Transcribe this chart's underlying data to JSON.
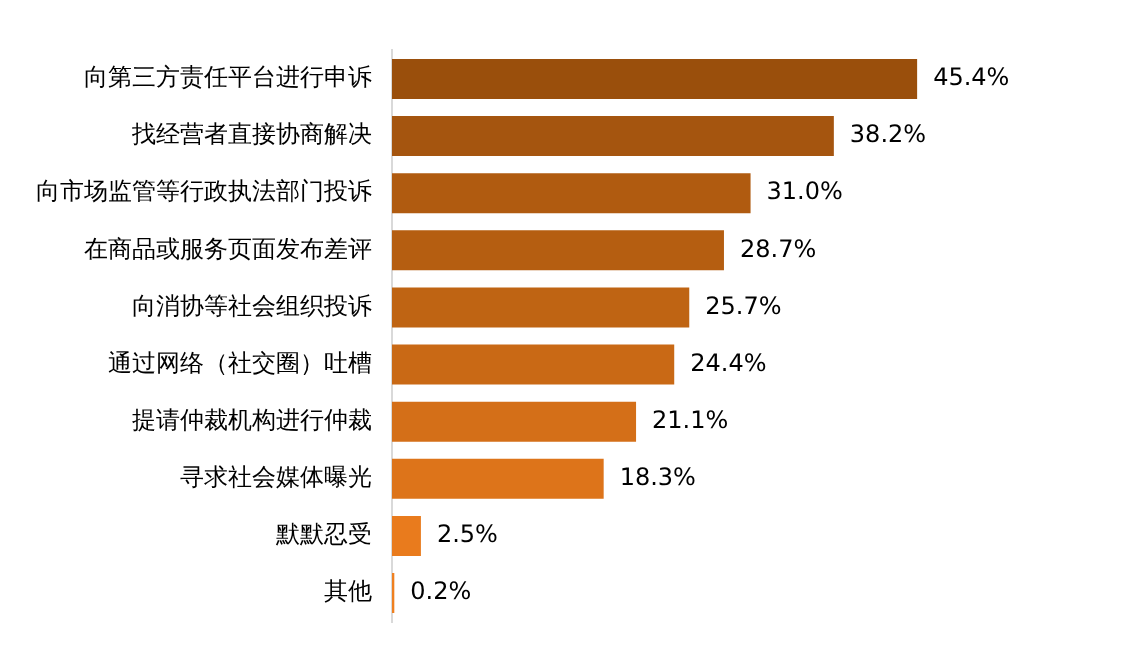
{
  "chart_data": {
    "type": "bar",
    "orientation": "horizontal",
    "categories": [
      "向第三方责任平台进行申诉",
      "找经营者直接协商解决",
      "向市场监管等行政执法部门投诉",
      "在商品或服务页面发布差评",
      "向消协等社会组织投诉",
      "通过网络（社交圈）吐槽",
      "提请仲裁机构进行仲裁",
      "寻求社会媒体曝光",
      "默默忍受",
      "其他"
    ],
    "values": [
      45.4,
      38.2,
      31.0,
      28.7,
      25.7,
      24.4,
      21.1,
      18.3,
      2.5,
      0.2
    ],
    "value_labels": [
      "45.4%",
      "38.2%",
      "31.0%",
      "28.7%",
      "25.7%",
      "24.4%",
      "21.1%",
      "18.3%",
      "2.5%",
      "0.2%"
    ],
    "colors": [
      "#9a4f0c",
      "#a5550f",
      "#b05b10",
      "#b55e11",
      "#bf6413",
      "#c96915",
      "#d46f18",
      "#dd741a",
      "#e97b1d",
      "#ef8020"
    ],
    "grid": false,
    "legend": false,
    "tick_labels": "y"
  }
}
